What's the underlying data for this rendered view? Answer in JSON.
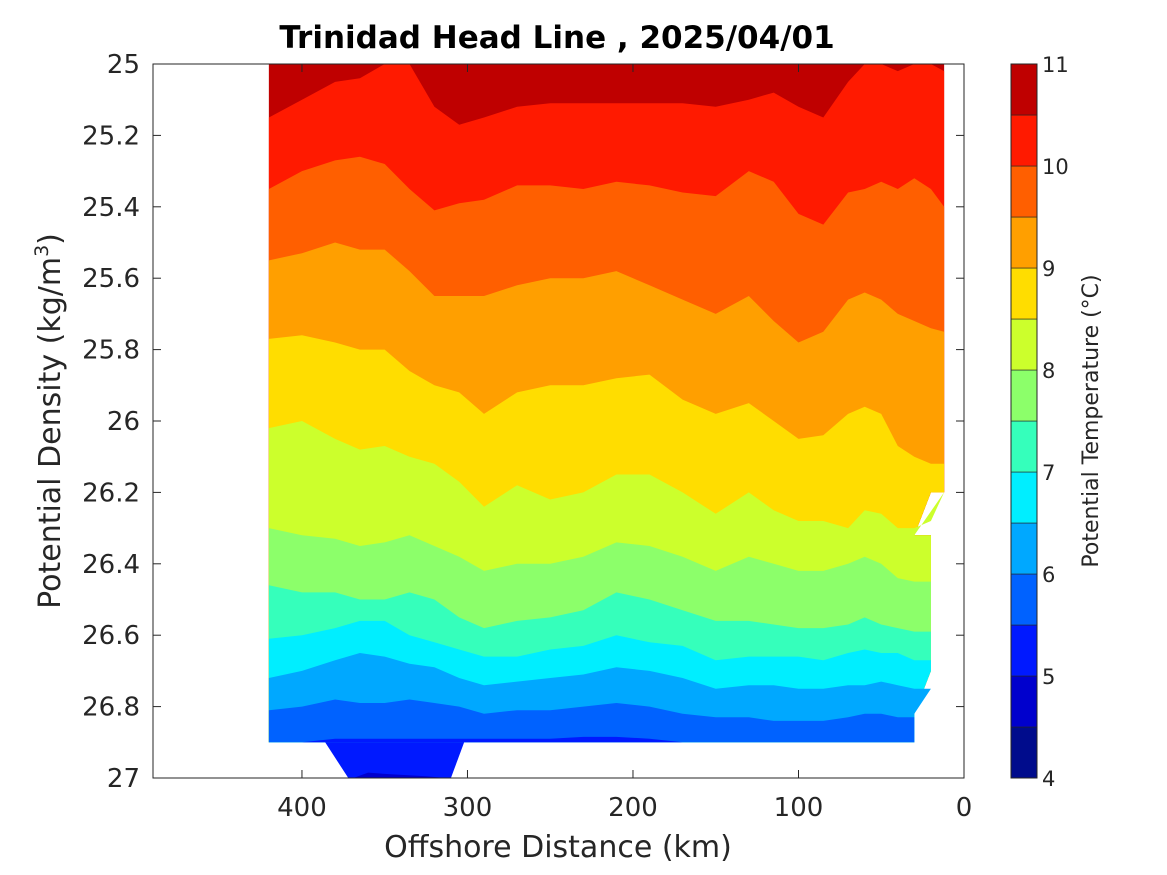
{
  "chart_data": {
    "type": "contour",
    "title": "Trinidad Head Line , 2025/04/01",
    "xlabel": "Offshore Distance (km)",
    "ylabel": "Potential Density (kg/m",
    "ylabel_sup": "3",
    "ylabel_close": ")",
    "xlim": [
      490,
      0
    ],
    "ylim": [
      25,
      27
    ],
    "x_reversed": true,
    "y_reversed": true,
    "x_ticks": [
      400,
      300,
      200,
      100,
      0
    ],
    "x_tick_labels": [
      "400",
      "300",
      "200",
      "100",
      "0"
    ],
    "y_ticks": [
      25,
      25.2,
      25.4,
      25.6,
      25.8,
      26,
      26.2,
      26.4,
      26.6,
      26.8,
      27
    ],
    "y_tick_labels": [
      "25",
      "25.2",
      "25.4",
      "25.6",
      "25.8",
      "26",
      "26.2",
      "26.4",
      "26.6",
      "26.8",
      "27"
    ],
    "colorbar": {
      "label": "Potential Temperature (°C)",
      "range": [
        4,
        11
      ],
      "ticks": [
        4,
        5,
        6,
        7,
        8,
        9,
        10,
        11
      ],
      "tick_labels": [
        "4",
        "5",
        "6",
        "7",
        "8",
        "9",
        "10",
        "11"
      ],
      "levels": [
        4,
        4.5,
        5,
        5.5,
        6,
        6.5,
        7,
        7.5,
        8,
        8.5,
        9,
        9.5,
        10,
        10.5,
        11
      ],
      "colors": [
        "#000c8c",
        "#0000cd",
        "#0019ff",
        "#0062ff",
        "#00a8ff",
        "#00eeff",
        "#35ffbb",
        "#8cff6a",
        "#ccff2c",
        "#ffdd00",
        "#ff9f00",
        "#ff5f00",
        "#ff1a00",
        "#bf0000"
      ]
    },
    "data_extent": {
      "x": [
        10,
        420
      ],
      "y_bottom": 26.9,
      "y_bottom_deep_segment": {
        "x": [
          310,
          380
        ],
        "y": 27
      }
    },
    "isolines": [
      {
        "level": 10.5,
        "x": [
          420,
          400,
          380,
          365,
          350,
          335,
          320,
          305,
          290,
          270,
          250,
          230,
          210,
          190,
          170,
          150,
          130,
          115,
          100,
          85,
          70,
          60,
          50,
          40,
          30,
          20,
          12
        ],
        "y": [
          25.15,
          25.1,
          25.05,
          25.04,
          25.0,
          25.0,
          25.12,
          25.17,
          25.15,
          25.12,
          25.11,
          25.11,
          25.11,
          25.11,
          25.11,
          25.12,
          25.1,
          25.08,
          25.12,
          25.15,
          25.05,
          25.0,
          25.0,
          25.02,
          25.0,
          25.0,
          25.02
        ]
      },
      {
        "level": 10.0,
        "x": [
          420,
          400,
          380,
          365,
          350,
          335,
          320,
          305,
          290,
          270,
          250,
          230,
          210,
          190,
          170,
          150,
          130,
          115,
          100,
          85,
          70,
          60,
          50,
          40,
          30,
          20,
          12
        ],
        "y": [
          25.35,
          25.3,
          25.27,
          25.26,
          25.28,
          25.35,
          25.41,
          25.39,
          25.38,
          25.34,
          25.34,
          25.35,
          25.33,
          25.34,
          25.36,
          25.37,
          25.3,
          25.33,
          25.42,
          25.45,
          25.36,
          25.35,
          25.33,
          25.35,
          25.32,
          25.35,
          25.4
        ]
      },
      {
        "level": 9.5,
        "x": [
          420,
          400,
          380,
          365,
          350,
          335,
          320,
          305,
          290,
          270,
          250,
          230,
          210,
          190,
          170,
          150,
          130,
          115,
          100,
          85,
          70,
          60,
          50,
          40,
          30,
          20,
          12
        ],
        "y": [
          25.55,
          25.53,
          25.5,
          25.52,
          25.52,
          25.58,
          25.65,
          25.65,
          25.65,
          25.62,
          25.6,
          25.6,
          25.58,
          25.62,
          25.66,
          25.7,
          25.65,
          25.72,
          25.78,
          25.75,
          25.66,
          25.64,
          25.66,
          25.7,
          25.72,
          25.74,
          25.75
        ]
      },
      {
        "level": 9.0,
        "x": [
          420,
          400,
          380,
          365,
          350,
          335,
          320,
          305,
          290,
          270,
          250,
          230,
          210,
          190,
          170,
          150,
          130,
          115,
          100,
          85,
          70,
          60,
          50,
          40,
          30,
          20,
          12
        ],
        "y": [
          25.77,
          25.76,
          25.78,
          25.8,
          25.8,
          25.86,
          25.9,
          25.92,
          25.98,
          25.92,
          25.9,
          25.9,
          25.88,
          25.87,
          25.94,
          25.98,
          25.95,
          26.0,
          26.05,
          26.04,
          25.98,
          25.96,
          25.98,
          26.07,
          26.1,
          26.12,
          26.12
        ]
      },
      {
        "level": 8.5,
        "x": [
          420,
          400,
          380,
          365,
          350,
          335,
          320,
          305,
          290,
          270,
          250,
          230,
          210,
          190,
          170,
          150,
          130,
          115,
          100,
          85,
          70,
          60,
          50,
          40,
          30,
          20,
          12
        ],
        "y": [
          26.02,
          26.0,
          26.05,
          26.08,
          26.07,
          26.1,
          26.12,
          26.17,
          26.24,
          26.18,
          26.22,
          26.2,
          26.15,
          26.15,
          26.2,
          26.26,
          26.2,
          26.25,
          26.28,
          26.28,
          26.3,
          26.25,
          26.26,
          26.3,
          26.3,
          26.28,
          26.2
        ]
      },
      {
        "level": 8.0,
        "x": [
          420,
          400,
          380,
          365,
          350,
          335,
          320,
          305,
          290,
          270,
          250,
          230,
          210,
          190,
          170,
          150,
          130,
          115,
          100,
          85,
          70,
          60,
          50,
          40,
          30,
          20
        ],
        "y": [
          26.3,
          26.32,
          26.33,
          26.35,
          26.34,
          26.32,
          26.35,
          26.38,
          26.42,
          26.4,
          26.4,
          26.38,
          26.34,
          26.35,
          26.38,
          26.42,
          26.38,
          26.4,
          26.42,
          26.42,
          26.4,
          26.38,
          26.4,
          26.44,
          26.45,
          26.45
        ]
      },
      {
        "level": 7.5,
        "x": [
          420,
          400,
          380,
          365,
          350,
          335,
          320,
          305,
          290,
          270,
          250,
          230,
          210,
          190,
          170,
          150,
          130,
          115,
          100,
          85,
          70,
          60,
          50,
          40,
          30,
          20
        ],
        "y": [
          26.46,
          26.48,
          26.48,
          26.5,
          26.5,
          26.48,
          26.5,
          26.55,
          26.58,
          26.56,
          26.55,
          26.53,
          26.48,
          26.5,
          26.53,
          26.56,
          26.56,
          26.57,
          26.58,
          26.58,
          26.57,
          26.55,
          26.57,
          26.58,
          26.59,
          26.59
        ]
      },
      {
        "level": 7.0,
        "x": [
          420,
          400,
          380,
          365,
          350,
          335,
          320,
          305,
          290,
          270,
          250,
          230,
          210,
          190,
          170,
          150,
          130,
          115,
          100,
          85,
          70,
          60,
          50,
          40,
          30,
          20
        ],
        "y": [
          26.61,
          26.6,
          26.58,
          26.56,
          26.56,
          26.6,
          26.62,
          26.64,
          26.66,
          26.66,
          26.64,
          26.63,
          26.6,
          26.62,
          26.63,
          26.67,
          26.66,
          26.66,
          26.66,
          26.67,
          26.65,
          26.64,
          26.65,
          26.65,
          26.67,
          26.67
        ]
      },
      {
        "level": 6.5,
        "x": [
          420,
          400,
          380,
          365,
          350,
          335,
          320,
          305,
          290,
          270,
          250,
          230,
          210,
          190,
          170,
          150,
          130,
          115,
          100,
          85,
          70,
          60,
          50,
          40,
          30,
          20
        ],
        "y": [
          26.72,
          26.7,
          26.67,
          26.65,
          26.66,
          26.68,
          26.69,
          26.72,
          26.74,
          26.73,
          26.72,
          26.71,
          26.69,
          26.7,
          26.72,
          26.75,
          26.74,
          26.74,
          26.75,
          26.75,
          26.74,
          26.74,
          26.73,
          26.74,
          26.75,
          26.75
        ]
      },
      {
        "level": 6.0,
        "x": [
          420,
          400,
          380,
          365,
          350,
          335,
          320,
          305,
          290,
          270,
          250,
          230,
          210,
          190,
          170,
          150,
          130,
          115,
          100,
          85,
          70,
          60,
          50,
          40,
          30
        ],
        "y": [
          26.81,
          26.8,
          26.78,
          26.79,
          26.79,
          26.78,
          26.79,
          26.8,
          26.82,
          26.81,
          26.81,
          26.8,
          26.79,
          26.8,
          26.82,
          26.83,
          26.83,
          26.84,
          26.84,
          26.84,
          26.83,
          26.82,
          26.82,
          26.83,
          26.83
        ]
      },
      {
        "level": 5.5,
        "x": [
          420,
          400,
          380,
          365,
          350,
          335,
          320,
          305,
          290,
          270,
          250,
          230,
          210,
          190,
          170,
          150,
          130,
          115,
          100,
          85,
          70,
          60,
          50,
          40,
          30
        ],
        "y": [
          26.9,
          26.9,
          26.89,
          26.89,
          26.89,
          26.89,
          26.89,
          26.89,
          26.89,
          26.89,
          26.89,
          26.885,
          26.885,
          26.89,
          26.9,
          26.9,
          26.9,
          26.9,
          26.9,
          26.9,
          26.9,
          26.9,
          26.9,
          26.9,
          26.9
        ]
      }
    ],
    "deep_pocket": {
      "level_5_0": {
        "x": [
          380,
          370,
          355,
          330,
          312,
          305
        ],
        "y": [
          26.9,
          26.99,
          26.97,
          26.99,
          26.99,
          26.9
        ]
      },
      "level_4_5": {
        "x": [
          368,
          360,
          345,
          325,
          315
        ],
        "y": [
          27.0,
          26.98,
          26.99,
          27.0,
          27.0
        ]
      }
    }
  }
}
